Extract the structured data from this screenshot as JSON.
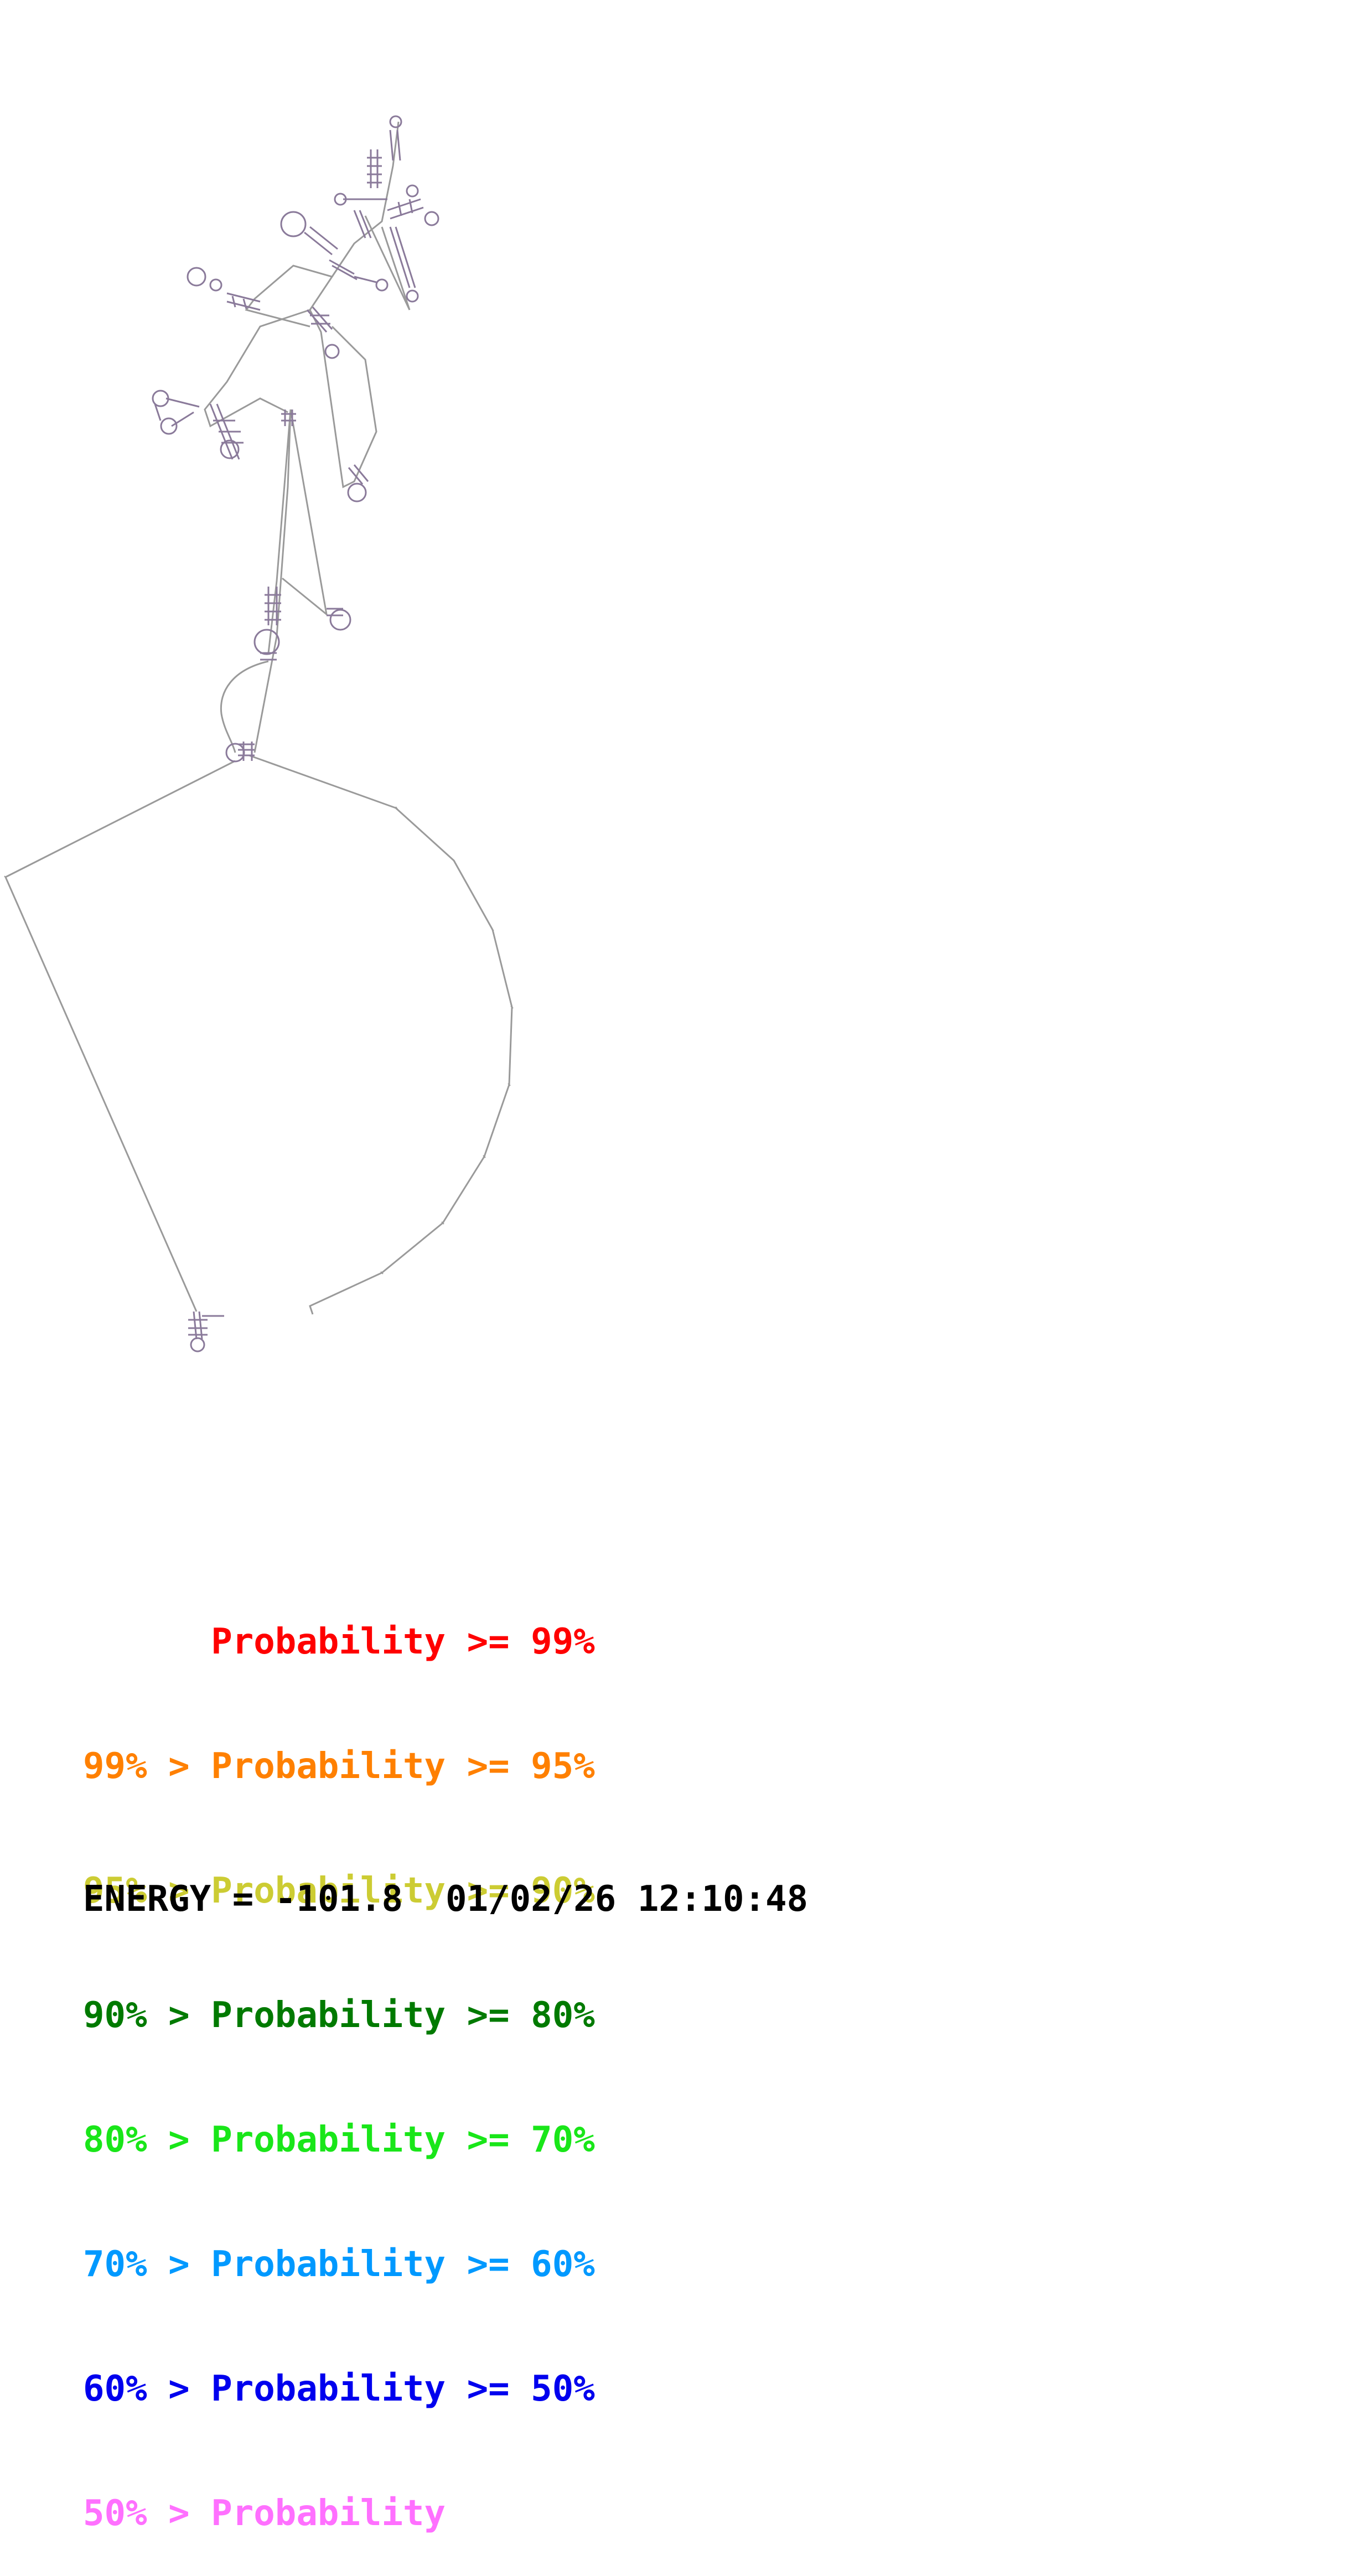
{
  "legend": [
    {
      "prefix": "",
      "label": "Probability",
      "suffix": ">= 99%",
      "color": "#ff0000"
    },
    {
      "prefix": "99% >",
      "label": "Probability",
      "suffix": ">= 95%",
      "color": "#ff8000"
    },
    {
      "prefix": "95% >",
      "label": "Probability",
      "suffix": ">= 90%",
      "color": "#cccc33"
    },
    {
      "prefix": "90% >",
      "label": "Probability",
      "suffix": ">= 80%",
      "color": "#007a00"
    },
    {
      "prefix": "80% >",
      "label": "Probability",
      "suffix": ">= 70%",
      "color": "#19e619"
    },
    {
      "prefix": "70% >",
      "label": "Probability",
      "suffix": ">= 60%",
      "color": "#0099ff"
    },
    {
      "prefix": "60% >",
      "label": "Probability",
      "suffix": ">= 50%",
      "color": "#0000ee"
    },
    {
      "prefix": "50% >",
      "label": "Probability",
      "suffix": "",
      "color": "#ff70ff"
    }
  ],
  "energy_line": "ENERGY = -101.8  01/02/26 12:10:48",
  "colors": {
    "backbone": "#9a9a9a",
    "pair": "#8a7a9a"
  }
}
